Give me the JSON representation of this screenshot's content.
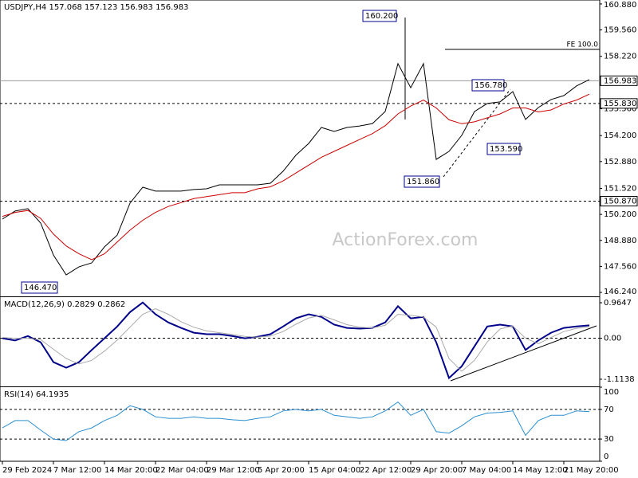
{
  "chart_data": [
    {
      "type": "line",
      "title": "USDJPY,H4  157.068 157.123 156.983 156.983",
      "watermark": "ActionForex.com",
      "ylim": [
        146.04,
        161.08
      ],
      "yticks": [
        {
          "value": 160.88,
          "label": "160.880"
        },
        {
          "value": 159.56,
          "label": "159.560"
        },
        {
          "value": 158.22,
          "label": "158.220"
        },
        {
          "value": 155.56,
          "label": "155.560"
        },
        {
          "value": 154.2,
          "label": "154.200"
        },
        {
          "value": 152.88,
          "label": "152.880"
        },
        {
          "value": 151.52,
          "label": "151.520"
        },
        {
          "value": 150.2,
          "label": "150.200"
        },
        {
          "value": 148.88,
          "label": "148.880"
        },
        {
          "value": 147.56,
          "label": "147.560"
        },
        {
          "value": 146.24,
          "label": "146.240"
        }
      ],
      "levels": [
        {
          "value": 156.983,
          "style": "solid"
        },
        {
          "value": 155.83,
          "label": "155.830",
          "style": "dashed"
        },
        {
          "value": 150.87,
          "label": "150.870",
          "style": "dashed"
        }
      ],
      "annotations": [
        "160.200",
        "156.780",
        "153.590",
        "151.860",
        "146.470",
        "FE 100.0"
      ],
      "series": [
        {
          "name": "USDJPY",
          "color": "#000000",
          "values": [
            149.96,
            150.37,
            150.49,
            149.76,
            148.14,
            147.13,
            147.54,
            147.74,
            148.55,
            149.15,
            150.77,
            151.58,
            151.38,
            151.38,
            151.38,
            151.46,
            151.5,
            151.7,
            151.7,
            151.7,
            151.7,
            151.78,
            152.39,
            153.2,
            153.8,
            154.61,
            154.41,
            154.61,
            154.69,
            154.81,
            155.42,
            157.85,
            156.63,
            157.85,
            152.99,
            153.4,
            154.21,
            155.42,
            155.83,
            155.91,
            156.43,
            155.02,
            155.62,
            156.03,
            156.23,
            156.72,
            157.04
          ]
        },
        {
          "name": "MA",
          "color": "#cc0000",
          "values": [
            150.1,
            150.3,
            150.4,
            150.0,
            149.2,
            148.6,
            148.2,
            147.9,
            148.2,
            148.8,
            149.4,
            149.9,
            150.3,
            150.6,
            150.8,
            151.0,
            151.1,
            151.2,
            151.3,
            151.3,
            151.5,
            151.6,
            151.9,
            152.3,
            152.7,
            153.1,
            153.4,
            153.7,
            154.0,
            154.3,
            154.7,
            155.3,
            155.7,
            156.0,
            155.6,
            155.0,
            154.8,
            154.9,
            155.1,
            155.3,
            155.6,
            155.6,
            155.4,
            155.5,
            155.8,
            156.0,
            156.3
          ]
        }
      ]
    },
    {
      "type": "line",
      "title": "MACD(12,26,9) 0.2829 0.2862",
      "ylim": [
        -1.265,
        1.116
      ],
      "yticks": [
        0.9647,
        {
          "value": 0,
          "label": "0.00"
        },
        -1.1138
      ],
      "levels": [
        {
          "value": 0,
          "style": "dashed"
        }
      ],
      "series": [
        {
          "name": "MACD",
          "color": "#00008b",
          "values": [
            0.0,
            -0.06,
            0.06,
            -0.11,
            -0.65,
            -0.8,
            -0.65,
            -0.32,
            0.0,
            0.32,
            0.71,
            0.97,
            0.65,
            0.43,
            0.28,
            0.15,
            0.11,
            0.11,
            0.06,
            0.0,
            0.04,
            0.11,
            0.32,
            0.54,
            0.65,
            0.58,
            0.37,
            0.28,
            0.26,
            0.28,
            0.43,
            0.87,
            0.54,
            0.58,
            -0.11,
            -1.08,
            -0.76,
            -0.22,
            0.32,
            0.37,
            0.32,
            -0.32,
            -0.06,
            0.15,
            0.28,
            0.32,
            0.35
          ]
        },
        {
          "name": "Signal",
          "color": "#aaaaaa",
          "values": [
            0.02,
            0.0,
            0.0,
            -0.04,
            -0.3,
            -0.55,
            -0.7,
            -0.6,
            -0.35,
            -0.05,
            0.3,
            0.65,
            0.8,
            0.65,
            0.45,
            0.3,
            0.2,
            0.15,
            0.1,
            0.05,
            0.03,
            0.06,
            0.18,
            0.38,
            0.55,
            0.62,
            0.5,
            0.37,
            0.3,
            0.28,
            0.35,
            0.65,
            0.62,
            0.58,
            0.3,
            -0.55,
            -0.9,
            -0.6,
            -0.1,
            0.25,
            0.33,
            0.0,
            -0.15,
            0.02,
            0.18,
            0.27,
            0.31
          ]
        }
      ]
    },
    {
      "type": "line",
      "title": "RSI(14) 64.1935",
      "ylim": [
        0,
        100
      ],
      "yticks": [
        100,
        70,
        30,
        0
      ],
      "levels": [
        {
          "value": 70,
          "style": "dashed"
        },
        {
          "value": 30,
          "style": "dashed"
        }
      ],
      "categories": [
        "29 Feb 2024",
        null,
        null,
        null,
        "7 Mar 12:00",
        null,
        null,
        null,
        "14 Mar 20:00",
        null,
        null,
        null,
        "22 Mar 04:00",
        null,
        null,
        null,
        "29 Mar 12:00",
        null,
        null,
        null,
        "5 Apr 20:00",
        null,
        null,
        null,
        "15 Apr 04:00",
        null,
        null,
        null,
        "22 Apr 12:00",
        null,
        null,
        null,
        "29 Apr 20:00",
        null,
        null,
        null,
        "7 May 04:00",
        null,
        null,
        null,
        "14 May 12:00",
        null,
        null,
        null,
        "21 May 20:00",
        null,
        null
      ],
      "series": [
        {
          "name": "RSI",
          "color": "#2b8fd0",
          "values": [
            45,
            55,
            55,
            42,
            30,
            28,
            40,
            45,
            55,
            62,
            75,
            70,
            60,
            58,
            58,
            60,
            58,
            58,
            56,
            55,
            58,
            60,
            68,
            70,
            68,
            70,
            62,
            60,
            58,
            60,
            68,
            80,
            62,
            70,
            40,
            38,
            48,
            60,
            65,
            66,
            68,
            35,
            55,
            62,
            62,
            68,
            67
          ]
        }
      ]
    }
  ]
}
